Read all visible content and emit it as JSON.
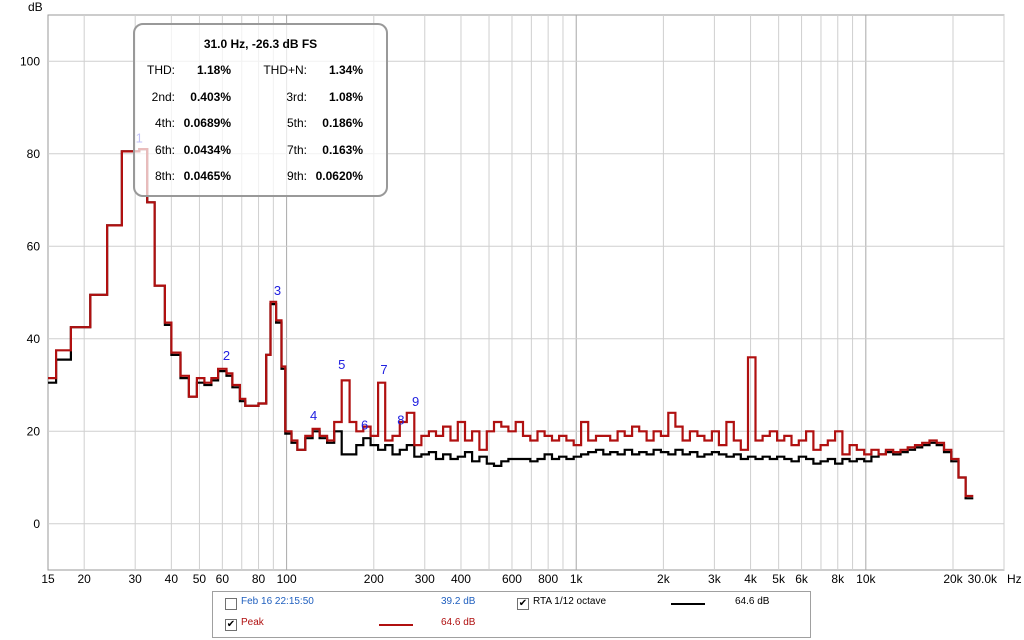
{
  "chart_data": {
    "type": "line",
    "title": "",
    "y_unit_label": "dB",
    "x_unit_label": "Hz",
    "x_scale": "log",
    "xlim": [
      15,
      30000
    ],
    "ylim": [
      -10,
      110
    ],
    "grid": true,
    "y_ticks": [
      0,
      20,
      40,
      60,
      80,
      100
    ],
    "x_ticks": [
      {
        "v": 15,
        "label": "15"
      },
      {
        "v": 20,
        "label": "20"
      },
      {
        "v": 30,
        "label": "30"
      },
      {
        "v": 40,
        "label": "40"
      },
      {
        "v": 50,
        "label": "50"
      },
      {
        "v": 60,
        "label": "60"
      },
      {
        "v": 80,
        "label": "80"
      },
      {
        "v": 100,
        "label": "100"
      },
      {
        "v": 200,
        "label": "200"
      },
      {
        "v": 300,
        "label": "300"
      },
      {
        "v": 400,
        "label": "400"
      },
      {
        "v": 600,
        "label": "600"
      },
      {
        "v": 800,
        "label": "800"
      },
      {
        "v": 1000,
        "label": "1k"
      },
      {
        "v": 2000,
        "label": "2k"
      },
      {
        "v": 3000,
        "label": "3k"
      },
      {
        "v": 4000,
        "label": "4k"
      },
      {
        "v": 5000,
        "label": "5k"
      },
      {
        "v": 6000,
        "label": "6k"
      },
      {
        "v": 8000,
        "label": "8k"
      },
      {
        "v": 10000,
        "label": "10k"
      },
      {
        "v": 20000,
        "label": "20k"
      },
      {
        "v": 30000,
        "label": "30.0k"
      }
    ],
    "series": [
      {
        "name": "Peak",
        "color": "#b01010",
        "style": "step",
        "points": [
          [
            15,
            31.5
          ],
          [
            16,
            37.5
          ],
          [
            18,
            42.5
          ],
          [
            21,
            49.5
          ],
          [
            24,
            64.5
          ],
          [
            27,
            80.5
          ],
          [
            31,
            81
          ],
          [
            33,
            69.5
          ],
          [
            35,
            51.5
          ],
          [
            38,
            43.5
          ],
          [
            40,
            37
          ],
          [
            43,
            32
          ],
          [
            46,
            27.5
          ],
          [
            49,
            31.5
          ],
          [
            52,
            30.5
          ],
          [
            55,
            31.5
          ],
          [
            58,
            33.5
          ],
          [
            62,
            32.5
          ],
          [
            65,
            30
          ],
          [
            69,
            27
          ],
          [
            72,
            25.5
          ],
          [
            80,
            26
          ],
          [
            85,
            36.5
          ],
          [
            88,
            48
          ],
          [
            92,
            44
          ],
          [
            96,
            34
          ],
          [
            99,
            20
          ],
          [
            104,
            18
          ],
          [
            109,
            16
          ],
          [
            116,
            19
          ],
          [
            123,
            20.5
          ],
          [
            130,
            19
          ],
          [
            138,
            18
          ],
          [
            146,
            22
          ],
          [
            155,
            31
          ],
          [
            165,
            22
          ],
          [
            174,
            20
          ],
          [
            184,
            21
          ],
          [
            195,
            19
          ],
          [
            207,
            30.5
          ],
          [
            219,
            18
          ],
          [
            232,
            19
          ],
          [
            246,
            22
          ],
          [
            260,
            24
          ],
          [
            276,
            17
          ],
          [
            292,
            19
          ],
          [
            310,
            20
          ],
          [
            328,
            19
          ],
          [
            347,
            21
          ],
          [
            368,
            18
          ],
          [
            390,
            22
          ],
          [
            413,
            18
          ],
          [
            437,
            20
          ],
          [
            463,
            16
          ],
          [
            491,
            20
          ],
          [
            520,
            22
          ],
          [
            551,
            21
          ],
          [
            583,
            20
          ],
          [
            618,
            22
          ],
          [
            655,
            19
          ],
          [
            694,
            18
          ],
          [
            735,
            20
          ],
          [
            778,
            19
          ],
          [
            825,
            18
          ],
          [
            873,
            19
          ],
          [
            925,
            18
          ],
          [
            980,
            17
          ],
          [
            1040,
            22
          ],
          [
            1100,
            18
          ],
          [
            1170,
            19
          ],
          [
            1240,
            19
          ],
          [
            1310,
            18
          ],
          [
            1390,
            20
          ],
          [
            1470,
            19
          ],
          [
            1560,
            21
          ],
          [
            1650,
            20
          ],
          [
            1750,
            18
          ],
          [
            1850,
            20
          ],
          [
            1960,
            19
          ],
          [
            2080,
            24
          ],
          [
            2200,
            21
          ],
          [
            2330,
            18
          ],
          [
            2470,
            20
          ],
          [
            2620,
            19
          ],
          [
            2770,
            18
          ],
          [
            2940,
            20
          ],
          [
            3110,
            17
          ],
          [
            3300,
            22
          ],
          [
            3500,
            18
          ],
          [
            3700,
            16
          ],
          [
            3920,
            36
          ],
          [
            4160,
            18
          ],
          [
            4400,
            19
          ],
          [
            4660,
            20
          ],
          [
            4940,
            18
          ],
          [
            5230,
            19
          ],
          [
            5540,
            17
          ],
          [
            5870,
            18
          ],
          [
            6220,
            20
          ],
          [
            6590,
            16
          ],
          [
            6980,
            17
          ],
          [
            7390,
            18
          ],
          [
            7830,
            20
          ],
          [
            8300,
            15
          ],
          [
            8790,
            17
          ],
          [
            9310,
            16
          ],
          [
            9870,
            15
          ],
          [
            10450,
            16
          ],
          [
            11070,
            15
          ],
          [
            11730,
            16
          ],
          [
            12430,
            15.5
          ],
          [
            13170,
            16
          ],
          [
            13950,
            16.5
          ],
          [
            14780,
            17
          ],
          [
            15660,
            17.5
          ],
          [
            16590,
            18
          ],
          [
            17570,
            17.5
          ],
          [
            18620,
            16
          ],
          [
            19730,
            14
          ],
          [
            20900,
            10
          ],
          [
            22100,
            6
          ],
          [
            23500,
            6
          ]
        ]
      },
      {
        "name": "RTA 1/12 octave",
        "color": "#000000",
        "style": "step",
        "points": [
          [
            15,
            30.5
          ],
          [
            16,
            35.5
          ],
          [
            18,
            42.5
          ],
          [
            21,
            49.5
          ],
          [
            24,
            64.5
          ],
          [
            27,
            80.5
          ],
          [
            31,
            81
          ],
          [
            33,
            69.5
          ],
          [
            35,
            51.5
          ],
          [
            38,
            43
          ],
          [
            40,
            36.5
          ],
          [
            43,
            31.5
          ],
          [
            46,
            27.5
          ],
          [
            49,
            30.5
          ],
          [
            52,
            30
          ],
          [
            55,
            31
          ],
          [
            58,
            33
          ],
          [
            62,
            32
          ],
          [
            65,
            29.5
          ],
          [
            69,
            26.5
          ],
          [
            72,
            25.5
          ],
          [
            80,
            26
          ],
          [
            85,
            36.5
          ],
          [
            88,
            47.5
          ],
          [
            92,
            43.5
          ],
          [
            96,
            33.5
          ],
          [
            99,
            19.5
          ],
          [
            104,
            17.5
          ],
          [
            109,
            16
          ],
          [
            116,
            18.5
          ],
          [
            123,
            20
          ],
          [
            130,
            18.5
          ],
          [
            138,
            17.5
          ],
          [
            146,
            20
          ],
          [
            155,
            15
          ],
          [
            165,
            15
          ],
          [
            174,
            17
          ],
          [
            184,
            18.5
          ],
          [
            195,
            17
          ],
          [
            207,
            16
          ],
          [
            219,
            17
          ],
          [
            232,
            15
          ],
          [
            246,
            16
          ],
          [
            260,
            17
          ],
          [
            276,
            14.5
          ],
          [
            292,
            15
          ],
          [
            310,
            15.5
          ],
          [
            328,
            14
          ],
          [
            347,
            15
          ],
          [
            368,
            14
          ],
          [
            390,
            14.5
          ],
          [
            413,
            15.5
          ],
          [
            437,
            13.5
          ],
          [
            463,
            14.5
          ],
          [
            491,
            13
          ],
          [
            520,
            12.5
          ],
          [
            551,
            13.5
          ],
          [
            583,
            14
          ],
          [
            618,
            14
          ],
          [
            655,
            14
          ],
          [
            694,
            13.5
          ],
          [
            735,
            14
          ],
          [
            778,
            15
          ],
          [
            825,
            14
          ],
          [
            873,
            14.5
          ],
          [
            925,
            14
          ],
          [
            980,
            14.5
          ],
          [
            1040,
            15
          ],
          [
            1100,
            15.5
          ],
          [
            1170,
            16
          ],
          [
            1240,
            15
          ],
          [
            1310,
            15.5
          ],
          [
            1390,
            15
          ],
          [
            1470,
            16
          ],
          [
            1560,
            15
          ],
          [
            1650,
            15.5
          ],
          [
            1750,
            15
          ],
          [
            1850,
            16
          ],
          [
            1960,
            15.5
          ],
          [
            2080,
            15
          ],
          [
            2200,
            16
          ],
          [
            2330,
            15
          ],
          [
            2470,
            15.5
          ],
          [
            2620,
            14.5
          ],
          [
            2770,
            15
          ],
          [
            2940,
            15.5
          ],
          [
            3110,
            15
          ],
          [
            3300,
            14.5
          ],
          [
            3500,
            15
          ],
          [
            3700,
            14
          ],
          [
            3920,
            14.5
          ],
          [
            4160,
            14
          ],
          [
            4400,
            14.5
          ],
          [
            4660,
            14
          ],
          [
            4940,
            14.5
          ],
          [
            5230,
            14
          ],
          [
            5540,
            13.5
          ],
          [
            5870,
            14.5
          ],
          [
            6220,
            14
          ],
          [
            6590,
            13
          ],
          [
            6980,
            13.5
          ],
          [
            7390,
            14
          ],
          [
            7830,
            13
          ],
          [
            8300,
            14
          ],
          [
            8790,
            13.5
          ],
          [
            9310,
            14
          ],
          [
            9870,
            13.5
          ],
          [
            10450,
            14.5
          ],
          [
            11070,
            15
          ],
          [
            11730,
            15.5
          ],
          [
            12430,
            15
          ],
          [
            13170,
            15.5
          ],
          [
            13950,
            16
          ],
          [
            14780,
            16.5
          ],
          [
            15660,
            17
          ],
          [
            16590,
            17.5
          ],
          [
            17570,
            17
          ],
          [
            18620,
            15.5
          ],
          [
            19730,
            13.5
          ],
          [
            20900,
            10
          ],
          [
            22100,
            5.5
          ],
          [
            23500,
            5.5
          ]
        ]
      }
    ],
    "harmonic_markers": [
      {
        "label": "1",
        "freq": 31,
        "db": 82
      },
      {
        "label": "2",
        "freq": 62,
        "db": 35
      },
      {
        "label": "3",
        "freq": 93,
        "db": 49
      },
      {
        "label": "4",
        "freq": 124,
        "db": 22
      },
      {
        "label": "5",
        "freq": 155,
        "db": 33
      },
      {
        "label": "6",
        "freq": 186,
        "db": 20
      },
      {
        "label": "7",
        "freq": 217,
        "db": 32
      },
      {
        "label": "8",
        "freq": 248,
        "db": 21
      },
      {
        "label": "9",
        "freq": 279,
        "db": 25
      }
    ],
    "marker_color": "#2020e0"
  },
  "info_box": {
    "title": "31.0 Hz, -26.3 dB FS",
    "rows": [
      {
        "l1": "THD:",
        "v1": "1.18%",
        "l2": "THD+N:",
        "v2": "1.34%"
      },
      {
        "l1": "2nd:",
        "v1": "0.403%",
        "l2": "3rd:",
        "v2": "1.08%"
      },
      {
        "l1": "4th:",
        "v1": "0.0689%",
        "l2": "5th:",
        "v2": "0.186%"
      },
      {
        "l1": "6th:",
        "v1": "0.0434%",
        "l2": "7th:",
        "v2": "0.163%"
      },
      {
        "l1": "8th:",
        "v1": "0.0465%",
        "l2": "9th:",
        "v2": "0.0620%"
      }
    ]
  },
  "legend": {
    "item1": {
      "label": "Feb 16 22:15:50",
      "value": "39.2 dB",
      "checked": false,
      "color": "#1f5fbf"
    },
    "item2": {
      "label": "RTA 1/12 octave",
      "value": "64.6 dB",
      "checked": true,
      "color": "#000000"
    },
    "item3": {
      "label": "Peak",
      "value": "64.6 dB",
      "checked": true,
      "color": "#b01010"
    },
    "check_glyph": "✔"
  }
}
